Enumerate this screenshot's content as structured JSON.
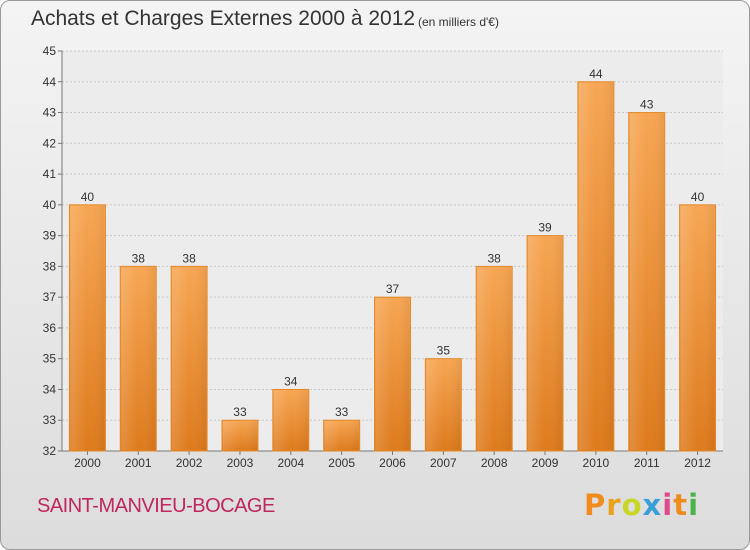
{
  "chart_data": {
    "type": "bar",
    "title": "Achats et Charges Externes 2000 à 2012",
    "unit_note": "(en milliers d'€)",
    "categories": [
      "2000",
      "2001",
      "2002",
      "2003",
      "2004",
      "2005",
      "2006",
      "2007",
      "2008",
      "2009",
      "2010",
      "2011",
      "2012"
    ],
    "values": [
      40,
      38,
      38,
      33,
      34,
      33,
      37,
      35,
      38,
      39,
      44,
      43,
      40
    ],
    "ylim": [
      32,
      45
    ],
    "yticks": [
      "32",
      "33",
      "34",
      "35",
      "36",
      "37",
      "38",
      "39",
      "40",
      "41",
      "42",
      "43",
      "44",
      "45"
    ],
    "grid": true,
    "bar_color": "#f5a04a"
  },
  "footer": {
    "commune": "SAINT-MANVIEU-BOCAGE",
    "logo_letters": [
      "P",
      "r",
      "o",
      "x",
      "i",
      "t",
      "i"
    ],
    "logo_colors": [
      "#f08c1e",
      "#e8a21c",
      "#c8d62a",
      "#3a9fd8",
      "#e04a8c",
      "#f08c1e",
      "#4bb34a"
    ]
  }
}
